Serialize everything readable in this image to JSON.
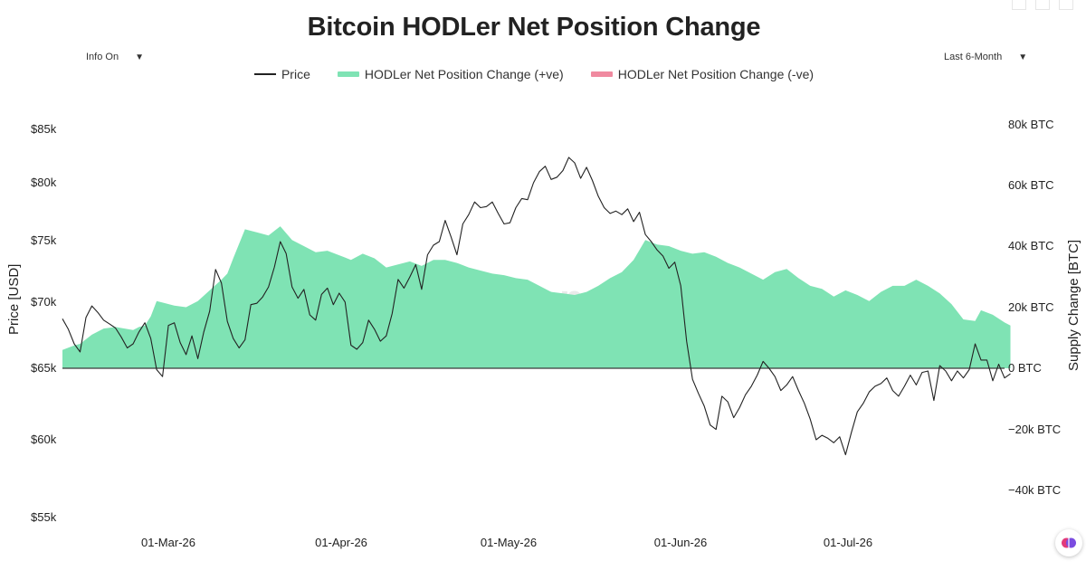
{
  "title": "Bitcoin HODLer Net Position Change",
  "controls": {
    "info": "Info On",
    "range": "Last 6-Month",
    "caret": "▼"
  },
  "watermark": "_checkonchain",
  "colors": {
    "price": "#222222",
    "positive": "#7fe3b4",
    "negative": "#f08aa0",
    "zero_line": "#3a3a3a"
  },
  "chart_data": {
    "type": "area",
    "title": "Bitcoin HODLer Net Position Change",
    "legend": [
      "Price",
      "HODLer Net Position Change (+ve)",
      "HODLer Net Position Change (-ve)"
    ],
    "legend_position": "top-center",
    "ylabel_left": "Price [USD]",
    "ylabel_right": "Supply Change [BTC]",
    "y_left_ticks": [
      "$85k",
      "$80k",
      "$75k",
      "$70k",
      "$65k",
      "$60k",
      "$55k"
    ],
    "y_right_ticks": [
      "80k BTC",
      "60k BTC",
      "40k BTC",
      "20k BTC",
      "0 BTC",
      "−20k BTC",
      "−40k BTC"
    ],
    "x_ticks": [
      "01-Mar-26",
      "01-Apr-26",
      "01-May-26",
      "01-Jun-26",
      "01-Jul-26"
    ],
    "y_left_range": [
      55000,
      85000
    ],
    "y_right_range": [
      -40000,
      80000
    ],
    "x_range": [
      "2026-02-12",
      "2026-07-22"
    ],
    "grid": false,
    "series": [
      {
        "name": "Price",
        "axis": "left",
        "points": [
          [
            "2026-02-12",
            68700
          ],
          [
            "2026-02-13",
            67900
          ],
          [
            "2026-02-14",
            66800
          ],
          [
            "2026-02-15",
            66200
          ],
          [
            "2026-02-16",
            68800
          ],
          [
            "2026-02-17",
            69700
          ],
          [
            "2026-02-18",
            69200
          ],
          [
            "2026-02-19",
            68600
          ],
          [
            "2026-02-20",
            68300
          ],
          [
            "2026-02-21",
            68000
          ],
          [
            "2026-02-22",
            67300
          ],
          [
            "2026-02-23",
            66500
          ],
          [
            "2026-02-24",
            66800
          ],
          [
            "2026-02-25",
            67700
          ],
          [
            "2026-02-26",
            68400
          ],
          [
            "2026-02-27",
            67200
          ],
          [
            "2026-02-28",
            64900
          ],
          [
            "2026-03-01",
            64400
          ],
          [
            "2026-03-02",
            68200
          ],
          [
            "2026-03-03",
            68400
          ],
          [
            "2026-03-04",
            66900
          ],
          [
            "2026-03-05",
            66000
          ],
          [
            "2026-03-06",
            67400
          ],
          [
            "2026-03-07",
            65700
          ],
          [
            "2026-03-08",
            67700
          ],
          [
            "2026-03-09",
            69300
          ],
          [
            "2026-03-10",
            72600
          ],
          [
            "2026-03-11",
            71500
          ],
          [
            "2026-03-12",
            68500
          ],
          [
            "2026-03-13",
            67200
          ],
          [
            "2026-03-14",
            66500
          ],
          [
            "2026-03-15",
            67100
          ],
          [
            "2026-03-16",
            69800
          ],
          [
            "2026-03-17",
            69900
          ],
          [
            "2026-03-18",
            70400
          ],
          [
            "2026-03-19",
            71200
          ],
          [
            "2026-03-20",
            72800
          ],
          [
            "2026-03-21",
            74900
          ],
          [
            "2026-03-22",
            73900
          ],
          [
            "2026-03-23",
            71200
          ],
          [
            "2026-03-24",
            70300
          ],
          [
            "2026-03-25",
            71000
          ],
          [
            "2026-03-26",
            69000
          ],
          [
            "2026-03-27",
            68600
          ],
          [
            "2026-03-28",
            70600
          ],
          [
            "2026-03-29",
            71100
          ],
          [
            "2026-03-30",
            69800
          ],
          [
            "2026-03-31",
            70700
          ],
          [
            "2026-04-01",
            70000
          ],
          [
            "2026-04-02",
            66700
          ],
          [
            "2026-04-03",
            66400
          ],
          [
            "2026-04-04",
            66900
          ],
          [
            "2026-04-05",
            68600
          ],
          [
            "2026-04-06",
            67900
          ],
          [
            "2026-04-07",
            67000
          ],
          [
            "2026-04-08",
            67400
          ],
          [
            "2026-04-09",
            69100
          ],
          [
            "2026-04-10",
            71800
          ],
          [
            "2026-04-11",
            71100
          ],
          [
            "2026-04-12",
            72000
          ],
          [
            "2026-04-13",
            73000
          ],
          [
            "2026-04-14",
            71000
          ],
          [
            "2026-04-15",
            73800
          ],
          [
            "2026-04-16",
            74600
          ],
          [
            "2026-04-17",
            74900
          ],
          [
            "2026-04-18",
            76700
          ],
          [
            "2026-04-19",
            75300
          ],
          [
            "2026-04-20",
            73800
          ],
          [
            "2026-04-21",
            76400
          ],
          [
            "2026-04-22",
            77200
          ],
          [
            "2026-04-23",
            78300
          ],
          [
            "2026-04-24",
            77800
          ],
          [
            "2026-04-25",
            77900
          ],
          [
            "2026-04-26",
            78300
          ],
          [
            "2026-04-27",
            77300
          ],
          [
            "2026-04-28",
            76400
          ],
          [
            "2026-04-29",
            76500
          ],
          [
            "2026-04-30",
            77800
          ],
          [
            "2026-05-01",
            78600
          ],
          [
            "2026-05-02",
            78500
          ],
          [
            "2026-05-03",
            80000
          ],
          [
            "2026-05-04",
            81000
          ],
          [
            "2026-05-05",
            81500
          ],
          [
            "2026-05-06",
            80300
          ],
          [
            "2026-05-07",
            80500
          ],
          [
            "2026-05-08",
            81100
          ],
          [
            "2026-05-09",
            82300
          ],
          [
            "2026-05-10",
            81800
          ],
          [
            "2026-05-11",
            80400
          ],
          [
            "2026-05-12",
            81400
          ],
          [
            "2026-05-13",
            80200
          ],
          [
            "2026-05-14",
            78800
          ],
          [
            "2026-05-15",
            77800
          ],
          [
            "2026-05-16",
            77300
          ],
          [
            "2026-05-17",
            77500
          ],
          [
            "2026-05-18",
            77200
          ],
          [
            "2026-05-19",
            77700
          ],
          [
            "2026-05-20",
            76600
          ],
          [
            "2026-05-21",
            77400
          ],
          [
            "2026-05-22",
            75500
          ],
          [
            "2026-05-23",
            74900
          ],
          [
            "2026-05-24",
            74200
          ],
          [
            "2026-05-25",
            73700
          ],
          [
            "2026-05-26",
            72700
          ],
          [
            "2026-05-27",
            73200
          ],
          [
            "2026-05-28",
            71300
          ],
          [
            "2026-05-29",
            67000
          ],
          [
            "2026-05-30",
            64200
          ],
          [
            "2026-05-31",
            63200
          ],
          [
            "2026-06-01",
            62300
          ],
          [
            "2026-06-02",
            61000
          ],
          [
            "2026-06-03",
            60700
          ],
          [
            "2026-06-04",
            63000
          ],
          [
            "2026-06-05",
            62600
          ],
          [
            "2026-06-06",
            61500
          ],
          [
            "2026-06-07",
            62200
          ],
          [
            "2026-06-08",
            63100
          ],
          [
            "2026-06-09",
            63700
          ],
          [
            "2026-06-10",
            64500
          ],
          [
            "2026-06-11",
            65500
          ],
          [
            "2026-06-12",
            65000
          ],
          [
            "2026-06-13",
            64400
          ],
          [
            "2026-06-14",
            63400
          ],
          [
            "2026-06-15",
            63800
          ],
          [
            "2026-06-16",
            64400
          ],
          [
            "2026-06-17",
            63400
          ],
          [
            "2026-06-18",
            62500
          ],
          [
            "2026-06-19",
            61400
          ],
          [
            "2026-06-20",
            60000
          ],
          [
            "2026-06-21",
            60300
          ],
          [
            "2026-06-22",
            60100
          ],
          [
            "2026-06-23",
            59800
          ],
          [
            "2026-06-24",
            60200
          ],
          [
            "2026-06-25",
            59000
          ],
          [
            "2026-06-26",
            60500
          ],
          [
            "2026-06-27",
            61900
          ],
          [
            "2026-06-28",
            62500
          ],
          [
            "2026-06-29",
            63300
          ],
          [
            "2026-06-30",
            63700
          ],
          [
            "2026-07-01",
            63900
          ],
          [
            "2026-07-02",
            64300
          ],
          [
            "2026-07-03",
            63400
          ],
          [
            "2026-07-04",
            63000
          ],
          [
            "2026-07-05",
            63700
          ],
          [
            "2026-07-06",
            64500
          ],
          [
            "2026-07-07",
            63800
          ],
          [
            "2026-07-08",
            64700
          ],
          [
            "2026-07-09",
            64800
          ],
          [
            "2026-07-10",
            62700
          ],
          [
            "2026-07-11",
            65200
          ],
          [
            "2026-07-12",
            64800
          ],
          [
            "2026-07-13",
            64100
          ],
          [
            "2026-07-14",
            64800
          ],
          [
            "2026-07-15",
            64300
          ],
          [
            "2026-07-16",
            64900
          ],
          [
            "2026-07-17",
            66800
          ],
          [
            "2026-07-18",
            65600
          ],
          [
            "2026-07-19",
            65600
          ],
          [
            "2026-07-20",
            64100
          ],
          [
            "2026-07-21",
            65300
          ],
          [
            "2026-07-22",
            64300
          ],
          [
            "2026-07-23",
            64600
          ]
        ]
      },
      {
        "name": "HODLer Net Position Change (+ve)",
        "axis": "right",
        "points": [
          [
            "2026-02-12",
            6000
          ],
          [
            "2026-02-14",
            7500
          ],
          [
            "2026-02-15",
            8000
          ],
          [
            "2026-02-17",
            11000
          ],
          [
            "2026-02-19",
            13000
          ],
          [
            "2026-02-21",
            13500
          ],
          [
            "2026-02-24",
            12500
          ],
          [
            "2026-02-25",
            13500
          ],
          [
            "2026-02-26",
            14000
          ],
          [
            "2026-02-27",
            17000
          ],
          [
            "2026-02-28",
            22000
          ],
          [
            "2026-03-01",
            21500
          ],
          [
            "2026-03-03",
            20500
          ],
          [
            "2026-03-05",
            20000
          ],
          [
            "2026-03-07",
            22000
          ],
          [
            "2026-03-09",
            25500
          ],
          [
            "2026-03-11",
            29000
          ],
          [
            "2026-03-12",
            31000
          ],
          [
            "2026-03-13",
            36000
          ],
          [
            "2026-03-15",
            45500
          ],
          [
            "2026-03-17",
            44500
          ],
          [
            "2026-03-19",
            43500
          ],
          [
            "2026-03-21",
            46500
          ],
          [
            "2026-03-23",
            42000
          ],
          [
            "2026-03-25",
            40000
          ],
          [
            "2026-03-27",
            38000
          ],
          [
            "2026-03-29",
            38500
          ],
          [
            "2026-03-31",
            37000
          ],
          [
            "2026-04-02",
            35500
          ],
          [
            "2026-04-04",
            37500
          ],
          [
            "2026-04-06",
            36000
          ],
          [
            "2026-04-08",
            33000
          ],
          [
            "2026-04-10",
            34000
          ],
          [
            "2026-04-12",
            35000
          ],
          [
            "2026-04-14",
            33500
          ],
          [
            "2026-04-16",
            35500
          ],
          [
            "2026-04-18",
            35500
          ],
          [
            "2026-04-20",
            34500
          ],
          [
            "2026-04-22",
            33000
          ],
          [
            "2026-04-24",
            32000
          ],
          [
            "2026-04-26",
            31000
          ],
          [
            "2026-04-28",
            30500
          ],
          [
            "2026-04-30",
            29500
          ],
          [
            "2026-05-02",
            29000
          ],
          [
            "2026-05-04",
            27000
          ],
          [
            "2026-05-06",
            25000
          ],
          [
            "2026-05-08",
            24500
          ],
          [
            "2026-05-10",
            24000
          ],
          [
            "2026-05-12",
            25000
          ],
          [
            "2026-05-14",
            27000
          ],
          [
            "2026-05-16",
            29500
          ],
          [
            "2026-05-18",
            31500
          ],
          [
            "2026-05-20",
            35500
          ],
          [
            "2026-05-22",
            42000
          ],
          [
            "2026-05-24",
            40500
          ],
          [
            "2026-05-26",
            40000
          ],
          [
            "2026-05-28",
            38500
          ],
          [
            "2026-05-30",
            37500
          ],
          [
            "2026-06-01",
            38000
          ],
          [
            "2026-06-03",
            36500
          ],
          [
            "2026-06-05",
            34500
          ],
          [
            "2026-06-07",
            33000
          ],
          [
            "2026-06-09",
            31000
          ],
          [
            "2026-06-11",
            29000
          ],
          [
            "2026-06-13",
            31500
          ],
          [
            "2026-06-15",
            32500
          ],
          [
            "2026-06-17",
            29500
          ],
          [
            "2026-06-19",
            27000
          ],
          [
            "2026-06-21",
            26000
          ],
          [
            "2026-06-23",
            23500
          ],
          [
            "2026-06-25",
            25500
          ],
          [
            "2026-06-27",
            24000
          ],
          [
            "2026-06-29",
            22000
          ],
          [
            "2026-07-01",
            25000
          ],
          [
            "2026-07-03",
            27000
          ],
          [
            "2026-07-05",
            27000
          ],
          [
            "2026-07-07",
            29000
          ],
          [
            "2026-07-09",
            27000
          ],
          [
            "2026-07-11",
            24500
          ],
          [
            "2026-07-13",
            21000
          ],
          [
            "2026-07-15",
            16000
          ],
          [
            "2026-07-17",
            15500
          ],
          [
            "2026-07-18",
            19000
          ],
          [
            "2026-07-20",
            17500
          ],
          [
            "2026-07-22",
            15000
          ],
          [
            "2026-07-23",
            14000
          ]
        ]
      },
      {
        "name": "HODLer Net Position Change (-ve)",
        "axis": "right",
        "points": []
      }
    ]
  }
}
